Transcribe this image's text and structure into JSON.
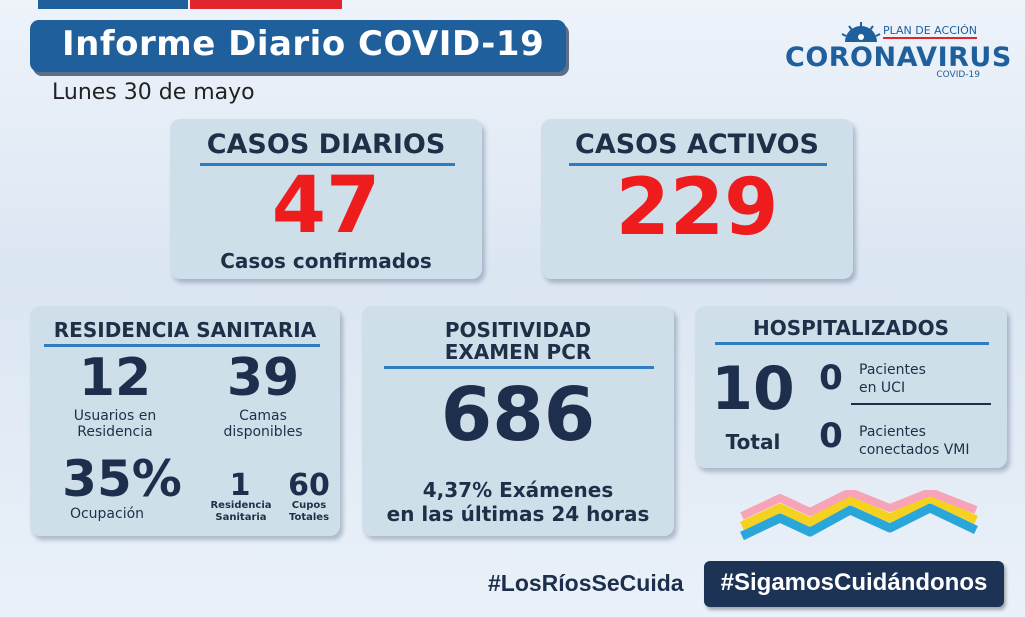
{
  "header": {
    "title": "Informe Diario COVID-19",
    "date": "Lunes 30 de mayo"
  },
  "logo": {
    "line1": "PLAN DE ACCIÓN",
    "line2": "CORONAVIRUS",
    "line3": "COVID-19"
  },
  "casos_diarios": {
    "heading": "CASOS DIARIOS",
    "value": "47",
    "caption": "Casos confirmados"
  },
  "casos_activos": {
    "heading": "CASOS ACTIVOS",
    "value": "229"
  },
  "residencia": {
    "heading": "RESIDENCIA SANITARIA",
    "usuarios_value": "12",
    "usuarios_label_1": "Usuarios en",
    "usuarios_label_2": "Residencia",
    "camas_value": "39",
    "camas_label_1": "Camas",
    "camas_label_2": "disponibles",
    "ocupacion_value": "35%",
    "ocupacion_label": "Ocupación",
    "residencia_value": "1",
    "residencia_label_1": "Residencia",
    "residencia_label_2": "Sanitaria",
    "cupos_value": "60",
    "cupos_label_1": "Cupos",
    "cupos_label_2": "Totales"
  },
  "positividad": {
    "heading_1": "POSITIVIDAD",
    "heading_2": "EXAMEN PCR",
    "value": "686",
    "caption_1": "4,37% Exámenes",
    "caption_2": "en las últimas 24 horas"
  },
  "hospitalizados": {
    "heading": "HOSPITALIZADOS",
    "total_value": "10",
    "total_label": "Total",
    "uci_value": "0",
    "uci_label_1": "Pacientes",
    "uci_label_2": "en UCI",
    "vmi_value": "0",
    "vmi_label_1": "Pacientes",
    "vmi_label_2": "conectados VMI"
  },
  "footer": {
    "hashtag_1": "#LosRíosSeCuida",
    "hashtag_2": "#SigamosCuidándonos"
  },
  "colors": {
    "brand_blue": "#1e5f9c",
    "accent_red": "#ee1c1c",
    "card_bg": "#cfdfea",
    "dark_text": "#1d2f4d"
  }
}
